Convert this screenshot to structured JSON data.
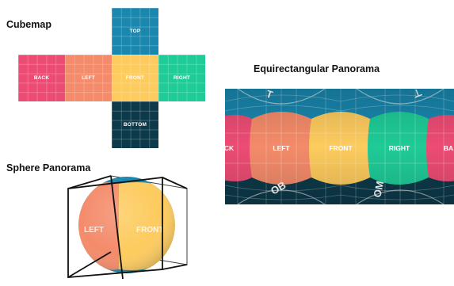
{
  "cubemap": {
    "title": "Cubemap",
    "faces": {
      "top": {
        "label": "TOP",
        "color": "#1987AE"
      },
      "back": {
        "label": "BACK",
        "color": "#EC4C74"
      },
      "left": {
        "label": "LEFT",
        "color": "#F48B6A"
      },
      "front": {
        "label": "FRONT",
        "color": "#FDCB5E"
      },
      "right": {
        "label": "RIGHT",
        "color": "#1FCB97"
      },
      "bottom": {
        "label": "BOTTOM",
        "color": "#0D3A4A"
      }
    }
  },
  "equirect": {
    "title": "Equirectangular Panorama",
    "labels": {
      "back_left": "CK",
      "left": "LEFT",
      "front": "FRONT",
      "right": "RIGHT",
      "back_right": "BA"
    }
  },
  "sphere": {
    "title": "Sphere Panorama",
    "labels": {
      "left": "LEFT",
      "front": "FRONT"
    }
  }
}
